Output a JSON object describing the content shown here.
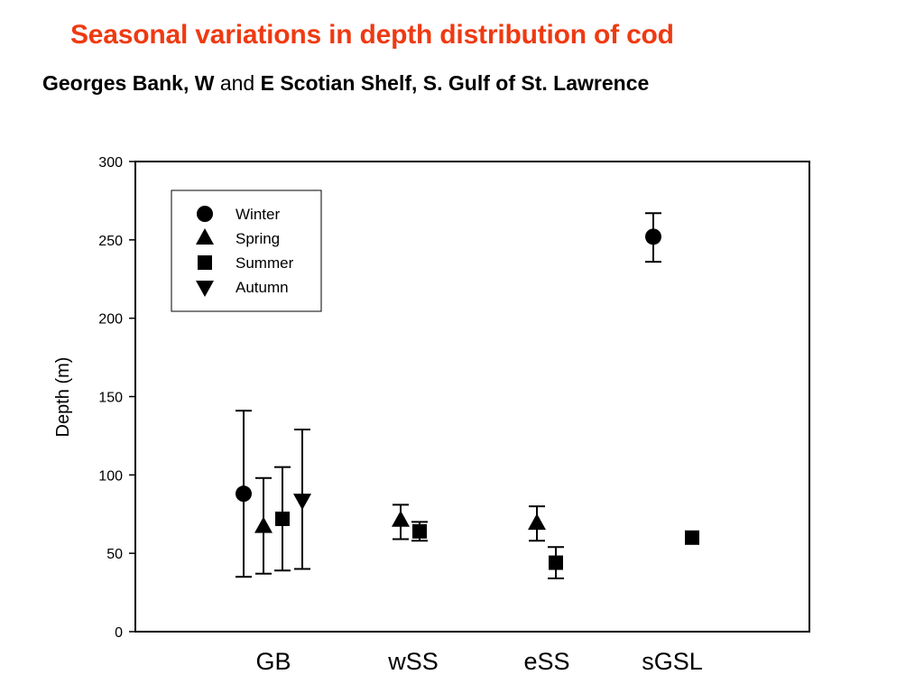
{
  "header": {
    "title": "Seasonal variations in depth distribution of cod",
    "subtitle_parts": [
      {
        "text": "Georges Bank, W",
        "bold": true
      },
      {
        "text": " and ",
        "bold": false
      },
      {
        "text": "E Scotian Shelf, S. Gulf of St. Lawrence",
        "bold": true
      }
    ]
  },
  "colors": {
    "title": "#ee3a12",
    "marks": "#000000"
  },
  "chart_data": {
    "type": "scatter",
    "title": "Seasonal variations in depth distribution of cod",
    "xlabel": "",
    "ylabel": "Depth (m)",
    "ylim": [
      0,
      300
    ],
    "yticks": [
      0,
      50,
      100,
      150,
      200,
      250,
      300
    ],
    "categories": [
      "GB",
      "wSS",
      "eSS",
      "sGSL"
    ],
    "grid": false,
    "legend": {
      "placement": "top-left",
      "entries": [
        {
          "name": "Winter",
          "marker": "circle"
        },
        {
          "name": "Spring",
          "marker": "triangle-up"
        },
        {
          "name": "Summer",
          "marker": "square"
        },
        {
          "name": "Autumn",
          "marker": "triangle-down"
        }
      ]
    },
    "series": [
      {
        "name": "Winter",
        "marker": "circle",
        "points": [
          {
            "category": "GB",
            "value": 88,
            "low": 35,
            "high": 141
          },
          {
            "category": "sGSL",
            "value": 252,
            "low": 236,
            "high": 267
          }
        ]
      },
      {
        "name": "Spring",
        "marker": "triangle-up",
        "points": [
          {
            "category": "GB",
            "value": 67,
            "low": 37,
            "high": 98
          },
          {
            "category": "wSS",
            "value": 71,
            "low": 59,
            "high": 81
          },
          {
            "category": "eSS",
            "value": 69,
            "low": 58,
            "high": 80
          }
        ]
      },
      {
        "name": "Summer",
        "marker": "square",
        "points": [
          {
            "category": "GB",
            "value": 72,
            "low": 39,
            "high": 105
          },
          {
            "category": "wSS",
            "value": 64,
            "low": 58,
            "high": 70
          },
          {
            "category": "eSS",
            "value": 44,
            "low": 34,
            "high": 54
          },
          {
            "category": "sGSL",
            "value": 60,
            "low": null,
            "high": null
          }
        ]
      },
      {
        "name": "Autumn",
        "marker": "triangle-down",
        "points": [
          {
            "category": "GB",
            "value": 84,
            "low": 40,
            "high": 129
          }
        ]
      }
    ]
  }
}
